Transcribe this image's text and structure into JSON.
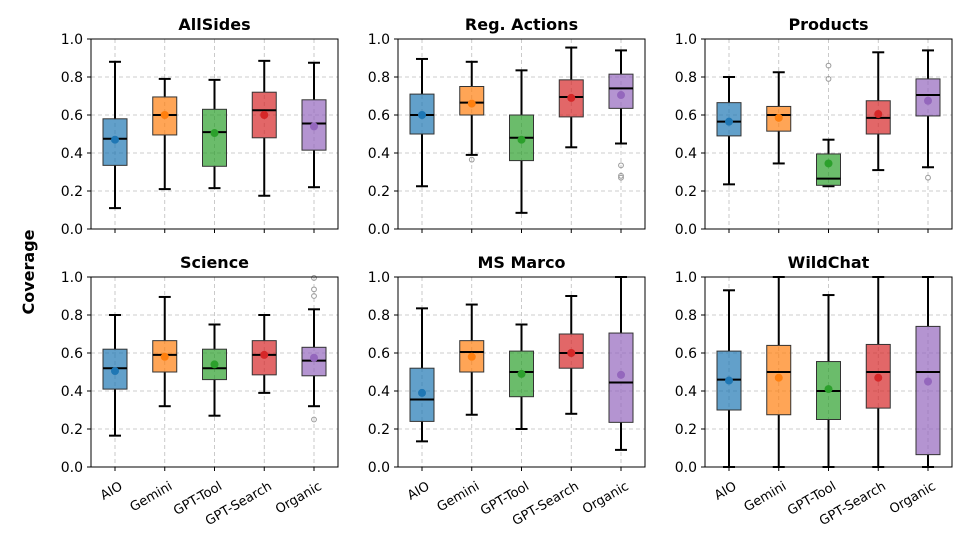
{
  "colors": [
    "#1f77b4",
    "#ff7f0e",
    "#2ca02c",
    "#d62728",
    "#9467bd"
  ],
  "chart_data": {
    "type": "box",
    "ylabel": "Coverage",
    "ylim": [
      0.0,
      1.0
    ],
    "yticks": [
      "0.0",
      "0.2",
      "0.4",
      "0.6",
      "0.8",
      "1.0"
    ],
    "yticks_values": [
      0.0,
      0.2,
      0.4,
      0.6,
      0.8,
      1.0
    ],
    "categories": [
      "AIO",
      "Gemini",
      "GPT-Tool",
      "GPT-Search",
      "Organic"
    ],
    "grid": true,
    "panels": [
      {
        "title": "AllSides",
        "boxes": [
          {
            "lo": 0.11,
            "q1": 0.335,
            "median": 0.475,
            "q3": 0.58,
            "hi": 0.88,
            "mean": 0.47,
            "outliers": []
          },
          {
            "lo": 0.21,
            "q1": 0.495,
            "median": 0.6,
            "q3": 0.695,
            "hi": 0.79,
            "mean": 0.6,
            "outliers": []
          },
          {
            "lo": 0.215,
            "q1": 0.33,
            "median": 0.51,
            "q3": 0.63,
            "hi": 0.785,
            "mean": 0.505,
            "outliers": []
          },
          {
            "lo": 0.175,
            "q1": 0.48,
            "median": 0.625,
            "q3": 0.72,
            "hi": 0.885,
            "mean": 0.6,
            "outliers": []
          },
          {
            "lo": 0.22,
            "q1": 0.415,
            "median": 0.555,
            "q3": 0.68,
            "hi": 0.875,
            "mean": 0.54,
            "outliers": []
          }
        ]
      },
      {
        "title": "Reg. Actions",
        "boxes": [
          {
            "lo": 0.225,
            "q1": 0.5,
            "median": 0.6,
            "q3": 0.71,
            "hi": 0.895,
            "mean": 0.6,
            "outliers": []
          },
          {
            "lo": 0.39,
            "q1": 0.6,
            "median": 0.665,
            "q3": 0.75,
            "hi": 0.88,
            "mean": 0.66,
            "outliers": [
              0.365
            ]
          },
          {
            "lo": 0.085,
            "q1": 0.36,
            "median": 0.48,
            "q3": 0.6,
            "hi": 0.835,
            "mean": 0.47,
            "outliers": []
          },
          {
            "lo": 0.43,
            "q1": 0.59,
            "median": 0.695,
            "q3": 0.785,
            "hi": 0.955,
            "mean": 0.69,
            "outliers": []
          },
          {
            "lo": 0.45,
            "q1": 0.635,
            "median": 0.74,
            "q3": 0.815,
            "hi": 0.94,
            "mean": 0.705,
            "outliers": [
              0.335,
              0.28,
              0.27
            ]
          }
        ]
      },
      {
        "title": "Products",
        "boxes": [
          {
            "lo": 0.235,
            "q1": 0.49,
            "median": 0.565,
            "q3": 0.665,
            "hi": 0.8,
            "mean": 0.565,
            "outliers": []
          },
          {
            "lo": 0.345,
            "q1": 0.515,
            "median": 0.6,
            "q3": 0.645,
            "hi": 0.825,
            "mean": 0.585,
            "outliers": []
          },
          {
            "lo": 0.225,
            "q1": 0.23,
            "median": 0.265,
            "q3": 0.395,
            "hi": 0.47,
            "mean": 0.345,
            "outliers": [
              0.86,
              0.79
            ]
          },
          {
            "lo": 0.31,
            "q1": 0.5,
            "median": 0.585,
            "q3": 0.675,
            "hi": 0.93,
            "mean": 0.605,
            "outliers": []
          },
          {
            "lo": 0.325,
            "q1": 0.595,
            "median": 0.705,
            "q3": 0.79,
            "hi": 0.94,
            "mean": 0.675,
            "outliers": [
              0.27
            ]
          }
        ]
      },
      {
        "title": "Science",
        "boxes": [
          {
            "lo": 0.165,
            "q1": 0.41,
            "median": 0.52,
            "q3": 0.62,
            "hi": 0.8,
            "mean": 0.505,
            "outliers": []
          },
          {
            "lo": 0.32,
            "q1": 0.5,
            "median": 0.59,
            "q3": 0.665,
            "hi": 0.895,
            "mean": 0.58,
            "outliers": []
          },
          {
            "lo": 0.27,
            "q1": 0.46,
            "median": 0.52,
            "q3": 0.62,
            "hi": 0.75,
            "mean": 0.54,
            "outliers": []
          },
          {
            "lo": 0.39,
            "q1": 0.485,
            "median": 0.59,
            "q3": 0.665,
            "hi": 0.8,
            "mean": 0.59,
            "outliers": []
          },
          {
            "lo": 0.32,
            "q1": 0.48,
            "median": 0.56,
            "q3": 0.63,
            "hi": 0.83,
            "mean": 0.575,
            "outliers": [
              0.995,
              0.935,
              0.9,
              0.25
            ]
          }
        ]
      },
      {
        "title": "MS Marco",
        "boxes": [
          {
            "lo": 0.135,
            "q1": 0.24,
            "median": 0.355,
            "q3": 0.52,
            "hi": 0.835,
            "mean": 0.39,
            "outliers": []
          },
          {
            "lo": 0.275,
            "q1": 0.5,
            "median": 0.605,
            "q3": 0.665,
            "hi": 0.855,
            "mean": 0.58,
            "outliers": []
          },
          {
            "lo": 0.2,
            "q1": 0.37,
            "median": 0.5,
            "q3": 0.61,
            "hi": 0.75,
            "mean": 0.49,
            "outliers": []
          },
          {
            "lo": 0.28,
            "q1": 0.52,
            "median": 0.6,
            "q3": 0.7,
            "hi": 0.9,
            "mean": 0.6,
            "outliers": []
          },
          {
            "lo": 0.09,
            "q1": 0.235,
            "median": 0.445,
            "q3": 0.705,
            "hi": 1.0,
            "mean": 0.485,
            "outliers": []
          }
        ]
      },
      {
        "title": "WildChat",
        "boxes": [
          {
            "lo": 0.0,
            "q1": 0.3,
            "median": 0.46,
            "q3": 0.61,
            "hi": 0.93,
            "mean": 0.455,
            "outliers": []
          },
          {
            "lo": 0.0,
            "q1": 0.275,
            "median": 0.5,
            "q3": 0.64,
            "hi": 1.0,
            "mean": 0.47,
            "outliers": []
          },
          {
            "lo": 0.0,
            "q1": 0.25,
            "median": 0.4,
            "q3": 0.555,
            "hi": 0.905,
            "mean": 0.41,
            "outliers": []
          },
          {
            "lo": 0.0,
            "q1": 0.31,
            "median": 0.5,
            "q3": 0.645,
            "hi": 1.0,
            "mean": 0.47,
            "outliers": []
          },
          {
            "lo": 0.0,
            "q1": 0.065,
            "median": 0.5,
            "q3": 0.74,
            "hi": 1.0,
            "mean": 0.45,
            "outliers": []
          }
        ]
      }
    ]
  }
}
